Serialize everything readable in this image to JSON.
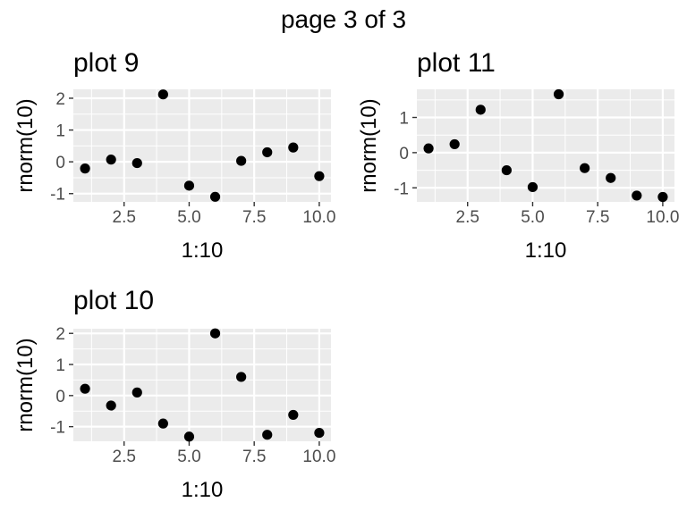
{
  "page": {
    "title": "page 3 of 3"
  },
  "chart_data": [
    {
      "type": "scatter",
      "title": "plot 9",
      "xlabel": "1:10",
      "ylabel": "rnorm(10)",
      "x": [
        1,
        2,
        3,
        4,
        5,
        6,
        7,
        8,
        9,
        10
      ],
      "y": [
        -0.21,
        0.07,
        -0.04,
        2.12,
        -0.75,
        -1.1,
        0.03,
        0.3,
        0.45,
        -0.45
      ],
      "xlim": [
        0.55,
        10.45
      ],
      "ylim": [
        -1.26,
        2.28
      ],
      "xticks": [
        2.5,
        5.0,
        7.5,
        10.0
      ],
      "xtick_labels": [
        "2.5",
        "5.0",
        "7.5",
        "10.0"
      ],
      "yticks": [
        -1,
        0,
        1,
        2
      ],
      "ytick_labels": [
        "-1",
        "0",
        "1",
        "2"
      ],
      "grid": true,
      "legend": "none"
    },
    {
      "type": "scatter",
      "title": "plot 11",
      "xlabel": "1:10",
      "ylabel": "rnorm(10)",
      "x": [
        1,
        2,
        3,
        4,
        5,
        6,
        7,
        8,
        9,
        10
      ],
      "y": [
        0.12,
        0.24,
        1.22,
        -0.5,
        -0.98,
        1.66,
        -0.44,
        -0.72,
        -1.22,
        -1.26
      ],
      "xlim": [
        0.55,
        10.45
      ],
      "ylim": [
        -1.4,
        1.8
      ],
      "xticks": [
        2.5,
        5.0,
        7.5,
        10.0
      ],
      "xtick_labels": [
        "2.5",
        "5.0",
        "7.5",
        "10.0"
      ],
      "yticks": [
        -1,
        0,
        1
      ],
      "ytick_labels": [
        "-1",
        "0",
        "1"
      ],
      "grid": true,
      "legend": "none"
    },
    {
      "type": "scatter",
      "title": "plot 10",
      "xlabel": "1:10",
      "ylabel": "rnorm(10)",
      "x": [
        1,
        2,
        3,
        4,
        5,
        6,
        7,
        8,
        9,
        10
      ],
      "y": [
        0.22,
        -0.32,
        0.1,
        -0.9,
        -1.32,
        2.0,
        0.6,
        -1.26,
        -0.62,
        -1.2
      ],
      "xlim": [
        0.55,
        10.45
      ],
      "ylim": [
        -1.47,
        2.15
      ],
      "xticks": [
        2.5,
        5.0,
        7.5,
        10.0
      ],
      "xtick_labels": [
        "2.5",
        "5.0",
        "7.5",
        "10.0"
      ],
      "yticks": [
        -1,
        0,
        1,
        2
      ],
      "ytick_labels": [
        "-1",
        "0",
        "1",
        "2"
      ],
      "grid": true,
      "legend": "none"
    }
  ],
  "colors": {
    "panel_background": "#ebebeb",
    "grid_major": "#ffffff",
    "point": "#000000",
    "axis_text": "#4d4d4d",
    "title_text": "#000000"
  }
}
